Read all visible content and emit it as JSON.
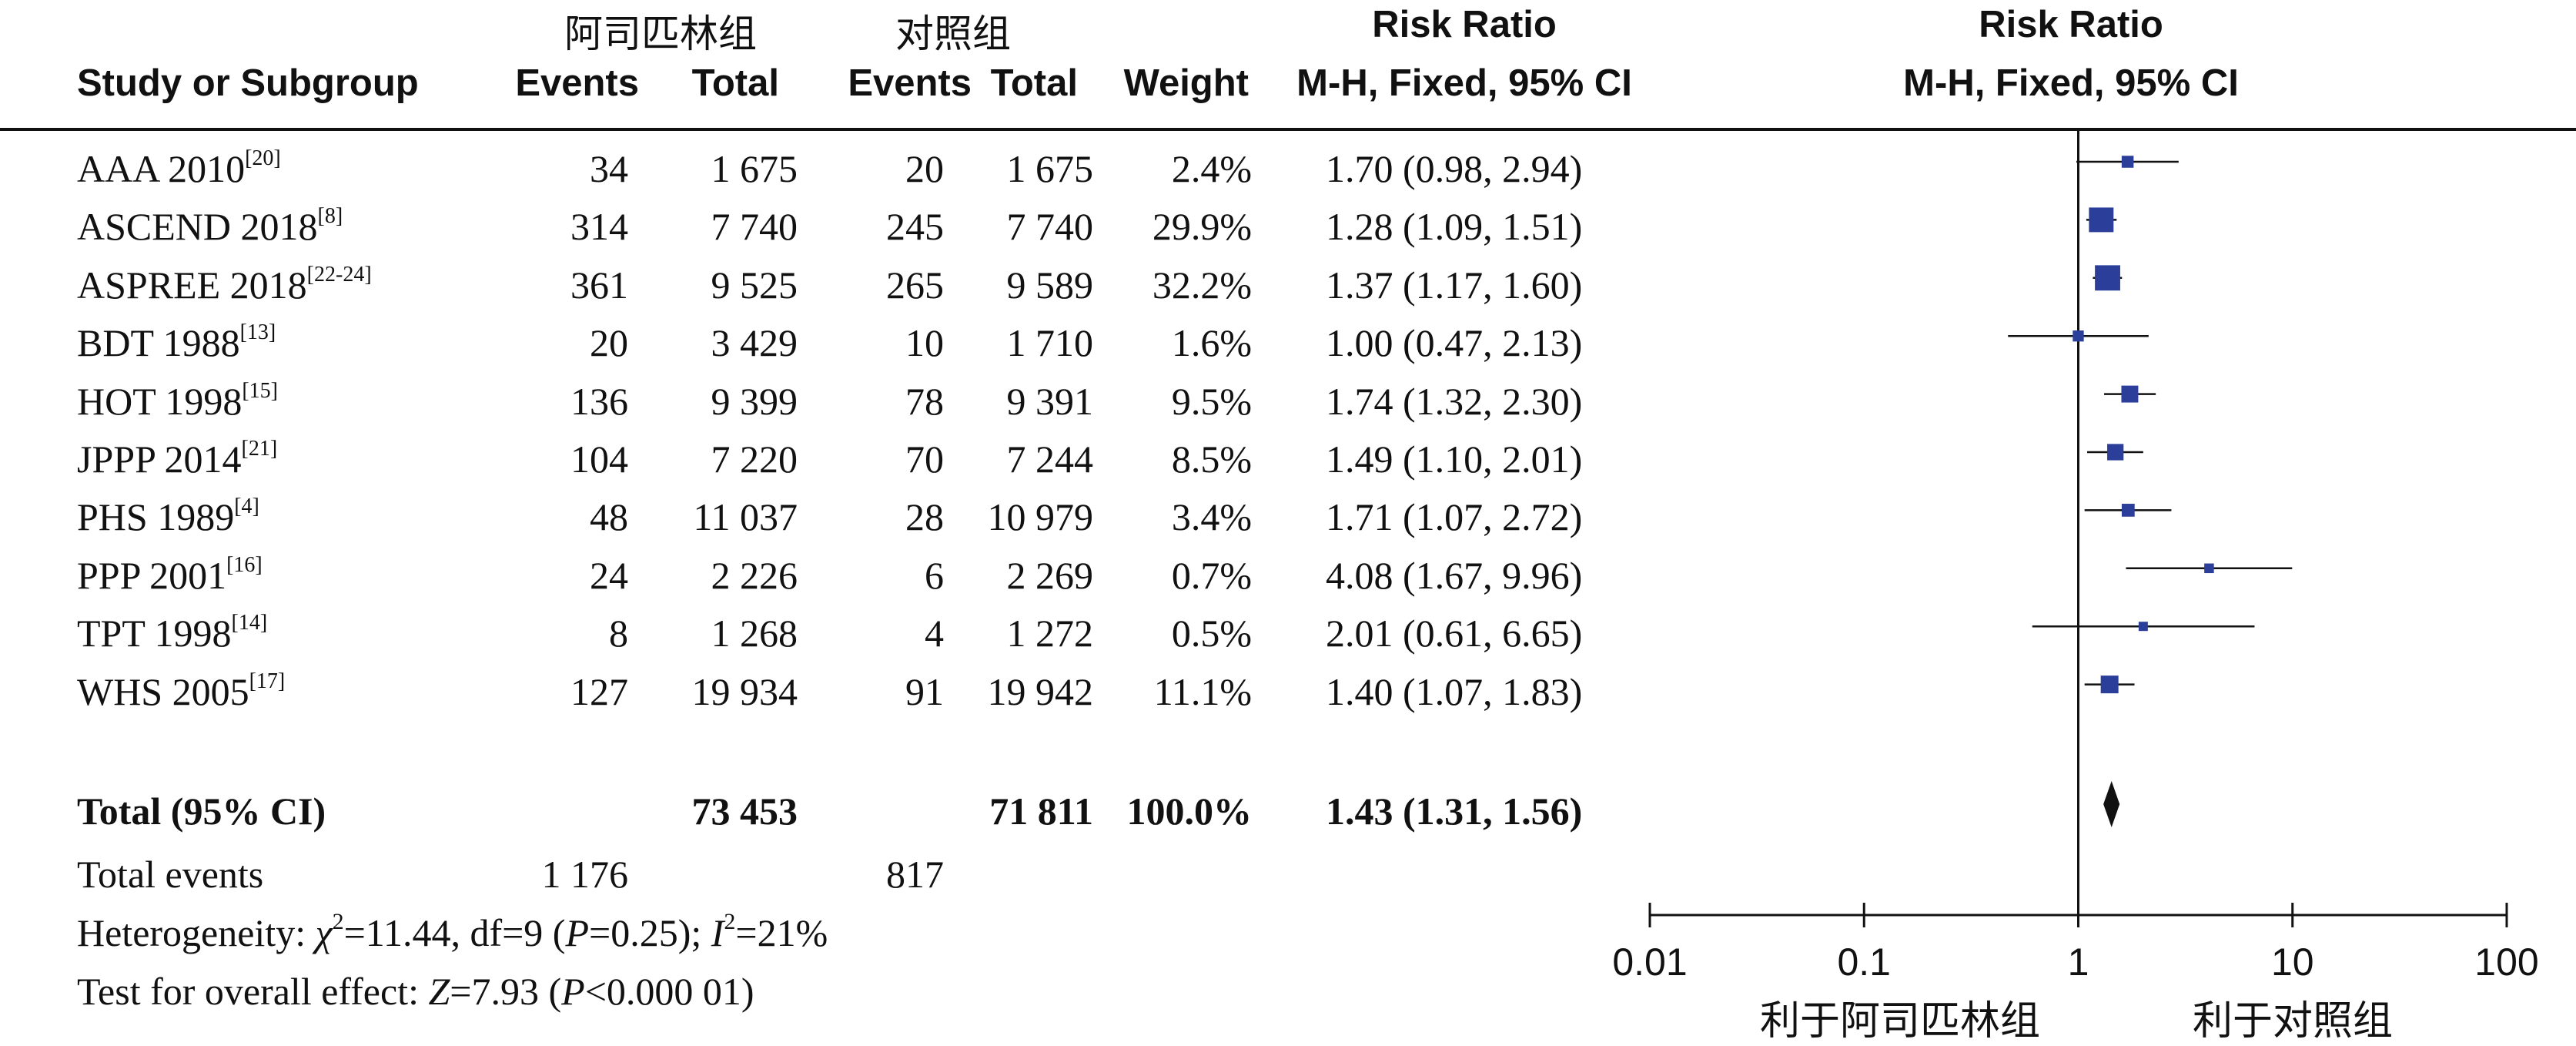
{
  "header": {
    "group1": "阿司匹林组",
    "group2": "对照组",
    "risk_ratio": "Risk Ratio",
    "study_or_subgroup": "Study or Subgroup",
    "events1": "Events",
    "total1": "Total",
    "events2": "Events",
    "total2": "Total",
    "weight": "Weight",
    "method": "M-H, Fixed, 95% CI",
    "plot_title": "Risk Ratio",
    "plot_method": "M-H, Fixed, 95% CI"
  },
  "studies": [
    {
      "name": "AAA 2010",
      "ref": "[20]",
      "events1": "34",
      "total1": "1 675",
      "events2": "20",
      "total2": "1 675",
      "weight": "2.4%",
      "ci_text": "1.70 (0.98, 2.94)"
    },
    {
      "name": "ASCEND 2018",
      "ref": "[8]",
      "events1": "314",
      "total1": "7 740",
      "events2": "245",
      "total2": "7 740",
      "weight": "29.9%",
      "ci_text": "1.28 (1.09, 1.51)"
    },
    {
      "name": "ASPREE 2018",
      "ref": "[22-24]",
      "events1": "361",
      "total1": "9 525",
      "events2": "265",
      "total2": "9 589",
      "weight": "32.2%",
      "ci_text": "1.37 (1.17, 1.60)"
    },
    {
      "name": "BDT 1988",
      "ref": "[13]",
      "events1": "20",
      "total1": "3 429",
      "events2": "10",
      "total2": "1 710",
      "weight": "1.6%",
      "ci_text": "1.00 (0.47, 2.13)"
    },
    {
      "name": "HOT 1998",
      "ref": "[15]",
      "events1": "136",
      "total1": "9 399",
      "events2": "78",
      "total2": "9 391",
      "weight": "9.5%",
      "ci_text": "1.74 (1.32, 2.30)"
    },
    {
      "name": "JPPP 2014",
      "ref": "[21]",
      "events1": "104",
      "total1": "7 220",
      "events2": "70",
      "total2": "7 244",
      "weight": "8.5%",
      "ci_text": "1.49 (1.10, 2.01)"
    },
    {
      "name": "PHS 1989",
      "ref": "[4]",
      "events1": "48",
      "total1": "11 037",
      "events2": "28",
      "total2": "10 979",
      "weight": "3.4%",
      "ci_text": "1.71 (1.07, 2.72)"
    },
    {
      "name": "PPP 2001",
      "ref": "[16]",
      "events1": "24",
      "total1": "2 226",
      "events2": "6",
      "total2": "2 269",
      "weight": "0.7%",
      "ci_text": "4.08 (1.67, 9.96)"
    },
    {
      "name": "TPT 1998",
      "ref": "[14]",
      "events1": "8",
      "total1": "1 268",
      "events2": "4",
      "total2": "1 272",
      "weight": "0.5%",
      "ci_text": "2.01 (0.61, 6.65)"
    },
    {
      "name": "WHS 2005",
      "ref": "[17]",
      "events1": "127",
      "total1": "19 934",
      "events2": "91",
      "total2": "19 942",
      "weight": "11.1%",
      "ci_text": "1.40 (1.07, 1.83)"
    }
  ],
  "total": {
    "label": "Total (95% CI)",
    "total1": "73 453",
    "total2": "71 811",
    "weight": "100.0%",
    "ci_text": "1.43 (1.31, 1.56)"
  },
  "total_events": {
    "label": "Total events",
    "events1": "1 176",
    "events2": "817"
  },
  "footer": {
    "het_prefix": "Heterogeneity: ",
    "chi": "χ",
    "chi_sup": "2",
    "het_mid": "=11.44, df=9 (",
    "p": "P",
    "het_p": "=0.25); ",
    "i": "I",
    "i_sup": "2",
    "het_end": "=21%",
    "test_prefix": "Test for overall effect: ",
    "z": "Z",
    "test_mid": "=7.93 (",
    "test_end": "<0.000 01)"
  },
  "axis": {
    "ticks": [
      "0.01",
      "0.1",
      "1",
      "10",
      "100"
    ],
    "favours_left": "利于阿司匹林组",
    "favours_right": "利于对照组"
  },
  "colors": {
    "marker": "#2b3f9a",
    "line": "#111111",
    "diamond": "#111111"
  },
  "chart_data": {
    "type": "forest",
    "x_scale": "log",
    "xlim": [
      0.01,
      100
    ],
    "reference_line": 1,
    "points": [
      {
        "study": "AAA 2010",
        "rr": 1.7,
        "lower": 0.98,
        "upper": 2.94,
        "weight": 2.4
      },
      {
        "study": "ASCEND 2018",
        "rr": 1.28,
        "lower": 1.09,
        "upper": 1.51,
        "weight": 29.9
      },
      {
        "study": "ASPREE 2018",
        "rr": 1.37,
        "lower": 1.17,
        "upper": 1.6,
        "weight": 32.2
      },
      {
        "study": "BDT 1988",
        "rr": 1.0,
        "lower": 0.47,
        "upper": 2.13,
        "weight": 1.6
      },
      {
        "study": "HOT 1998",
        "rr": 1.74,
        "lower": 1.32,
        "upper": 2.3,
        "weight": 9.5
      },
      {
        "study": "JPPP 2014",
        "rr": 1.49,
        "lower": 1.1,
        "upper": 2.01,
        "weight": 8.5
      },
      {
        "study": "PHS 1989",
        "rr": 1.71,
        "lower": 1.07,
        "upper": 2.72,
        "weight": 3.4
      },
      {
        "study": "PPP 2001",
        "rr": 4.08,
        "lower": 1.67,
        "upper": 9.96,
        "weight": 0.7
      },
      {
        "study": "TPT 1998",
        "rr": 2.01,
        "lower": 0.61,
        "upper": 6.65,
        "weight": 0.5
      },
      {
        "study": "WHS 2005",
        "rr": 1.4,
        "lower": 1.07,
        "upper": 1.83,
        "weight": 11.1
      }
    ],
    "pooled": {
      "rr": 1.43,
      "lower": 1.31,
      "upper": 1.56
    }
  }
}
